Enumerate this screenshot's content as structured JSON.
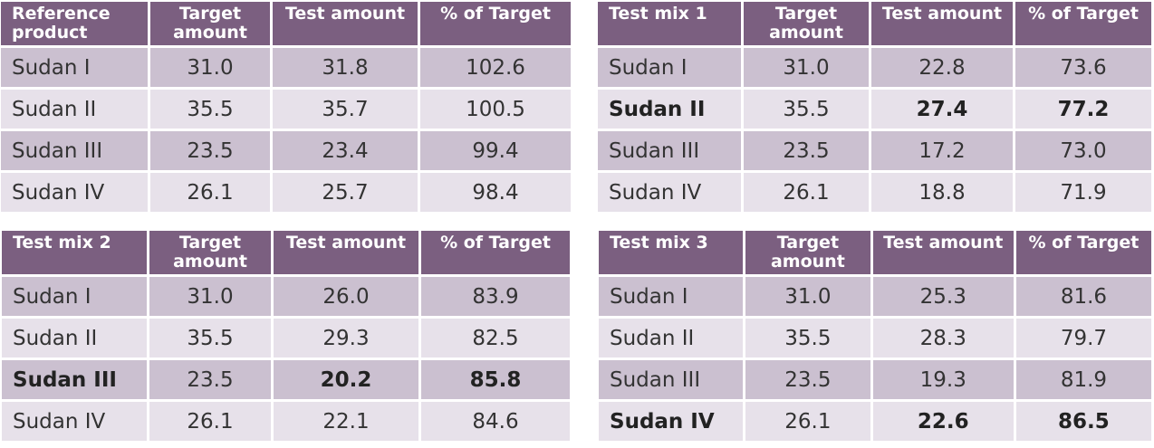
{
  "headers": {
    "target": "Target amount",
    "test": "Test amount",
    "pct": "% of Target"
  },
  "tables": [
    {
      "title": "Reference product",
      "rows": [
        {
          "name": "Sudan I",
          "target": "31.0",
          "test": "31.8",
          "pct": "102.6"
        },
        {
          "name": "Sudan II",
          "target": "35.5",
          "test": "35.7",
          "pct": "100.5"
        },
        {
          "name": "Sudan III",
          "target": "23.5",
          "test": "23.4",
          "pct": "99.4"
        },
        {
          "name": "Sudan IV",
          "target": "26.1",
          "test": "25.7",
          "pct": "98.4"
        }
      ]
    },
    {
      "title": "Test mix 1",
      "rows": [
        {
          "name": "Sudan I",
          "target": "31.0",
          "test": "22.8",
          "pct": "73.6"
        },
        {
          "name": "Sudan II",
          "target": "35.5",
          "test": "27.4",
          "pct": "77.2"
        },
        {
          "name": "Sudan III",
          "target": "23.5",
          "test": "17.2",
          "pct": "73.0"
        },
        {
          "name": "Sudan IV",
          "target": "26.1",
          "test": "18.8",
          "pct": "71.9"
        }
      ]
    },
    {
      "title": "Test mix 2",
      "rows": [
        {
          "name": "Sudan I",
          "target": "31.0",
          "test": "26.0",
          "pct": "83.9"
        },
        {
          "name": "Sudan II",
          "target": "35.5",
          "test": "29.3",
          "pct": "82.5"
        },
        {
          "name": "Sudan III",
          "target": "23.5",
          "test": "20.2",
          "pct": "85.8"
        },
        {
          "name": "Sudan IV",
          "target": "26.1",
          "test": "22.1",
          "pct": "84.6"
        }
      ]
    },
    {
      "title": "Test mix 3",
      "rows": [
        {
          "name": "Sudan I",
          "target": "31.0",
          "test": "25.3",
          "pct": "81.6"
        },
        {
          "name": "Sudan II",
          "target": "35.5",
          "test": "28.3",
          "pct": "79.7"
        },
        {
          "name": "Sudan III",
          "target": "23.5",
          "test": "19.3",
          "pct": "81.9"
        },
        {
          "name": "Sudan IV",
          "target": "26.1",
          "test": "22.6",
          "pct": "86.5"
        }
      ]
    }
  ],
  "colors": {
    "header": "#7b5f80",
    "row_dark": "#cbc0d0",
    "row_light": "#e7e1ea"
  }
}
